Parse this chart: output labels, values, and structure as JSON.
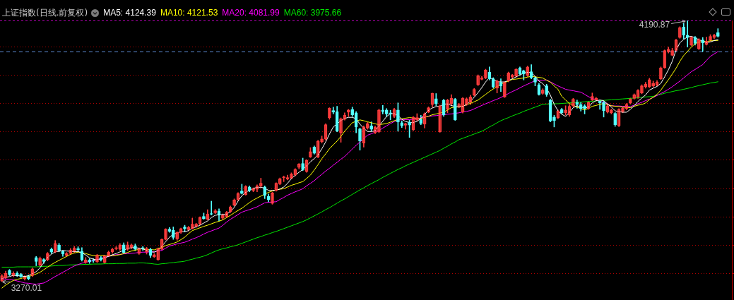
{
  "chart_data": {
    "type": "candlestick",
    "title": "上证指数(日线.前复权)",
    "categories": [
      null,
      null,
      null,
      null,
      null,
      null,
      null,
      null,
      null,
      null,
      null,
      null,
      null,
      null,
      null,
      null,
      null,
      null,
      null,
      null,
      null,
      null,
      null,
      null,
      null,
      null,
      null,
      null,
      null,
      null,
      null,
      null,
      null,
      null,
      null,
      null,
      null,
      null,
      null,
      null,
      null,
      null,
      null,
      null,
      null,
      null,
      null,
      null,
      null,
      null,
      null,
      null,
      null,
      null,
      null,
      null,
      null,
      null,
      null,
      null,
      null,
      null,
      null,
      null,
      null,
      null,
      null,
      null,
      null,
      null,
      null,
      null,
      null,
      null,
      null,
      null,
      null,
      null,
      null,
      null,
      null,
      null,
      null,
      null,
      null,
      null,
      null,
      null,
      null,
      null,
      null,
      null,
      null,
      null,
      null,
      null,
      null,
      null,
      null,
      null,
      null,
      null,
      null,
      null,
      null,
      null,
      null,
      null,
      null,
      null,
      null,
      null,
      null,
      null,
      null,
      null,
      null,
      null,
      null,
      null,
      null,
      null,
      null,
      null,
      null,
      null,
      null,
      null,
      null,
      null,
      null,
      null,
      null,
      null,
      null,
      null,
      null,
      null,
      null,
      null,
      null,
      null,
      null,
      null,
      null,
      null,
      null,
      null,
      null,
      null,
      null,
      null,
      null,
      null,
      null,
      null,
      null,
      null,
      null,
      null,
      null,
      null,
      null,
      null,
      null,
      null,
      null,
      null,
      null,
      null,
      null,
      null,
      null,
      null,
      null,
      null,
      null,
      null,
      null,
      null,
      null,
      null,
      null,
      null,
      null,
      null,
      null,
      null,
      null
    ],
    "ohlc": [
      [
        3272,
        3295,
        3270.01,
        3291
      ],
      [
        3283,
        3307,
        3280,
        3299
      ],
      [
        3309,
        3313,
        3291,
        3294
      ],
      [
        3292,
        3305,
        3287,
        3299
      ],
      [
        3299,
        3305,
        3288,
        3292
      ],
      [
        3296,
        3299,
        3284,
        3288
      ],
      [
        3280,
        3291,
        3275,
        3286
      ],
      [
        3288,
        3293,
        3276,
        3280
      ],
      [
        3291,
        3318,
        3288,
        3315
      ],
      [
        3355,
        3359,
        3326,
        3341
      ],
      [
        3328,
        3357,
        3324,
        3352
      ],
      [
        3348,
        3351,
        3334,
        3341
      ],
      [
        3347,
        3373,
        3343,
        3369
      ],
      [
        3385,
        3389,
        3369,
        3374
      ],
      [
        3374,
        3415,
        3372,
        3405
      ],
      [
        3399,
        3405,
        3375,
        3380
      ],
      [
        3376,
        3380,
        3359,
        3367
      ],
      [
        3362,
        3373,
        3359,
        3369
      ],
      [
        3369,
        3387,
        3366,
        3382
      ],
      [
        3377,
        3394,
        3373,
        3388
      ],
      [
        3386,
        3393,
        3375,
        3382
      ],
      [
        3377,
        3390,
        3342,
        3347
      ],
      [
        3338,
        3355,
        3334,
        3347
      ],
      [
        3347,
        3351,
        3334,
        3340
      ],
      [
        3345,
        3351,
        3338,
        3342
      ],
      [
        3340,
        3366,
        3337,
        3363
      ],
      [
        3355,
        3359,
        3342,
        3347
      ],
      [
        3338,
        3363,
        3334,
        3361
      ],
      [
        3361,
        3378,
        3359,
        3374
      ],
      [
        3375,
        3388,
        3370,
        3384
      ],
      [
        3386,
        3394,
        3382,
        3390
      ],
      [
        3384,
        3404,
        3380,
        3399
      ],
      [
        3400,
        3407,
        3369,
        3372
      ],
      [
        3384,
        3410,
        3380,
        3400
      ],
      [
        3391,
        3403,
        3386,
        3400
      ],
      [
        3397,
        3403,
        3379,
        3384
      ],
      [
        3369,
        3389,
        3366,
        3386
      ],
      [
        3390,
        3394,
        3380,
        3386
      ],
      [
        3374,
        3391,
        3367,
        3386
      ],
      [
        3384,
        3388,
        3355,
        3363
      ],
      [
        3357,
        3369,
        3355,
        3365
      ],
      [
        3348,
        3389,
        3345,
        3386
      ],
      [
        3384,
        3421,
        3381,
        3419
      ],
      [
        3419,
        3457,
        3417,
        3455
      ],
      [
        3455,
        3461,
        3444,
        3447
      ],
      [
        3451,
        3463,
        3419,
        3426
      ],
      [
        3421,
        3446,
        3416,
        3444
      ],
      [
        3444,
        3459,
        3440,
        3457
      ],
      [
        3463,
        3469,
        3446,
        3457
      ],
      [
        3453,
        3465,
        3449,
        3461
      ],
      [
        3457,
        3494,
        3455,
        3473
      ],
      [
        3465,
        3476,
        3462,
        3473
      ],
      [
        3473,
        3499,
        3470,
        3496
      ],
      [
        3500,
        3512,
        3490,
        3492
      ],
      [
        3490,
        3524,
        3488,
        3509
      ],
      [
        3510,
        3554,
        3505,
        3508
      ],
      [
        3513,
        3525,
        3510,
        3520
      ],
      [
        3519,
        3527,
        3484,
        3507
      ],
      [
        3494,
        3509,
        3490,
        3504
      ],
      [
        3499,
        3518,
        3496,
        3515
      ],
      [
        3517,
        3537,
        3514,
        3534
      ],
      [
        3540,
        3562,
        3537,
        3559
      ],
      [
        3559,
        3584,
        3556,
        3581
      ],
      [
        3590,
        3614,
        3579,
        3581
      ],
      [
        3577,
        3609,
        3575,
        3606
      ],
      [
        3604,
        3608,
        3587,
        3592
      ],
      [
        3592,
        3601,
        3587,
        3598
      ],
      [
        3596,
        3612,
        3587,
        3608
      ],
      [
        3608,
        3635,
        3604,
        3617
      ],
      [
        3604,
        3608,
        3563,
        3575
      ],
      [
        3571,
        3579,
        3550,
        3560
      ],
      [
        3546,
        3586,
        3543,
        3583
      ],
      [
        3592,
        3619,
        3589,
        3617
      ],
      [
        3615,
        3636,
        3612,
        3633
      ],
      [
        3637,
        3643,
        3623,
        3640
      ],
      [
        3632,
        3646,
        3629,
        3637
      ],
      [
        3635,
        3654,
        3632,
        3650
      ],
      [
        3646,
        3669,
        3643,
        3666
      ],
      [
        3673,
        3687,
        3668,
        3685
      ],
      [
        3687,
        3706,
        3662,
        3665
      ],
      [
        3658,
        3701,
        3656,
        3698
      ],
      [
        3710,
        3743,
        3708,
        3729
      ],
      [
        3745,
        3749,
        3720,
        3723
      ],
      [
        3710,
        3769,
        3707,
        3766
      ],
      [
        3764,
        3784,
        3759,
        3774
      ],
      [
        3773,
        3827,
        3770,
        3824
      ],
      [
        3848,
        3884,
        3843,
        3882
      ],
      [
        3874,
        3886,
        3862,
        3868
      ],
      [
        3870,
        3889,
        3799,
        3801
      ],
      [
        3795,
        3848,
        3762,
        3845
      ],
      [
        3843,
        3866,
        3840,
        3858
      ],
      [
        3868,
        3878,
        3853,
        3876
      ],
      [
        3878,
        3886,
        3853,
        3859
      ],
      [
        3866,
        3870,
        3795,
        3816
      ],
      [
        3809,
        3812,
        3734,
        3766
      ],
      [
        3759,
        3820,
        3745,
        3816
      ],
      [
        3812,
        3832,
        3808,
        3828
      ],
      [
        3820,
        3834,
        3801,
        3808
      ],
      [
        3795,
        3819,
        3792,
        3816
      ],
      [
        3799,
        3879,
        3796,
        3876
      ],
      [
        3876,
        3892,
        3862,
        3870
      ],
      [
        3876,
        3881,
        3853,
        3862
      ],
      [
        3866,
        3875,
        3841,
        3862
      ],
      [
        3853,
        3882,
        3849,
        3878
      ],
      [
        3876,
        3901,
        3801,
        3833
      ],
      [
        3831,
        3837,
        3814,
        3820
      ],
      [
        3822,
        3830,
        3808,
        3828
      ],
      [
        3833,
        3841,
        3779,
        3823
      ],
      [
        3806,
        3853,
        3803,
        3851
      ],
      [
        3841,
        3863,
        3837,
        3849
      ],
      [
        3843,
        3857,
        3824,
        3828
      ],
      [
        3826,
        3866,
        3812,
        3863
      ],
      [
        3868,
        3887,
        3866,
        3884
      ],
      [
        3895,
        3936,
        3886,
        3935
      ],
      [
        3916,
        3934,
        3891,
        3899
      ],
      [
        3799,
        3893,
        3797,
        3891
      ],
      [
        3911,
        3914,
        3853,
        3858
      ],
      [
        3878,
        3914,
        3866,
        3911
      ],
      [
        3899,
        3930,
        3891,
        3917
      ],
      [
        3914,
        3917,
        3839,
        3841
      ],
      [
        3888,
        3899,
        3884,
        3896
      ],
      [
        3868,
        3920,
        3865,
        3917
      ],
      [
        3895,
        3919,
        3892,
        3916
      ],
      [
        3903,
        3928,
        3895,
        3922
      ],
      [
        3928,
        3952,
        3925,
        3949
      ],
      [
        3965,
        4000,
        3962,
        3997
      ],
      [
        3984,
        3995,
        3982,
        3990
      ],
      [
        3989,
        4020,
        3986,
        4017
      ],
      [
        4009,
        4028,
        3982,
        3986
      ],
      [
        3986,
        3990,
        3953,
        3957
      ],
      [
        3953,
        3982,
        3936,
        3978
      ],
      [
        3974,
        3986,
        3941,
        3961
      ],
      [
        3922,
        3976,
        3920,
        3974
      ],
      [
        3978,
        4010,
        3975,
        4007
      ],
      [
        3992,
        4002,
        3988,
        3999
      ],
      [
        3995,
        4022,
        3992,
        4020
      ],
      [
        4025,
        4028,
        3999,
        4003
      ],
      [
        4014,
        4017,
        3982,
        4003
      ],
      [
        3997,
        4031,
        3994,
        4028
      ],
      [
        4011,
        4036,
        3986,
        3990
      ],
      [
        3989,
        3992,
        3961,
        3974
      ],
      [
        3965,
        3970,
        3928,
        3931
      ],
      [
        3934,
        3951,
        3931,
        3946
      ],
      [
        3961,
        3967,
        3924,
        3931
      ],
      [
        3911,
        3914,
        3834,
        3837
      ],
      [
        3851,
        3857,
        3816,
        3839
      ],
      [
        3848,
        3876,
        3845,
        3873
      ],
      [
        3878,
        3882,
        3862,
        3866
      ],
      [
        3866,
        3891,
        3858,
        3876
      ],
      [
        3859,
        3895,
        3853,
        3889
      ],
      [
        3891,
        3917,
        3886,
        3914
      ],
      [
        3903,
        3911,
        3882,
        3895
      ],
      [
        3895,
        3903,
        3872,
        3881
      ],
      [
        3891,
        3895,
        3862,
        3881
      ],
      [
        3881,
        3906,
        3878,
        3903
      ],
      [
        3911,
        3936,
        3907,
        3924
      ],
      [
        3911,
        3921,
        3908,
        3917
      ],
      [
        3907,
        3911,
        3878,
        3901
      ],
      [
        3903,
        3907,
        3851,
        3873
      ],
      [
        3868,
        3894,
        3865,
        3891
      ],
      [
        3866,
        3879,
        3862,
        3876
      ],
      [
        3864,
        3867,
        3818,
        3824
      ],
      [
        3820,
        3881,
        3817,
        3878
      ],
      [
        3870,
        3886,
        3866,
        3882
      ],
      [
        3881,
        3899,
        3877,
        3896
      ],
      [
        3900,
        3918,
        3897,
        3916
      ],
      [
        3917,
        3933,
        3914,
        3930
      ],
      [
        3920,
        3948,
        3917,
        3945
      ],
      [
        3936,
        3965,
        3933,
        3961
      ],
      [
        3957,
        3974,
        3953,
        3967
      ],
      [
        3957,
        3988,
        3955,
        3983
      ],
      [
        3961,
        3978,
        3957,
        3970
      ],
      [
        3964,
        3980,
        3961,
        3975
      ],
      [
        3986,
        4028,
        3983,
        4025
      ],
      [
        4025,
        4088,
        4023,
        4086
      ],
      [
        4082,
        4098,
        4077,
        4090
      ],
      [
        4069,
        4094,
        4067,
        4086
      ],
      [
        4086,
        4126,
        4083,
        4123
      ],
      [
        4132,
        4170,
        4129,
        4167
      ],
      [
        4169,
        4182,
        4127,
        4140
      ],
      [
        4140,
        4190.87,
        4098,
        4132
      ],
      [
        4105,
        4136,
        4102,
        4132
      ],
      [
        4132,
        4136,
        4105,
        4111
      ],
      [
        4092,
        4128,
        4089,
        4125
      ],
      [
        4123,
        4132,
        4083,
        4113
      ],
      [
        4107,
        4133,
        4105,
        4119
      ],
      [
        4123,
        4142,
        4119,
        4136
      ],
      [
        4132,
        4144,
        4127,
        4140
      ],
      [
        4149,
        4163,
        4133,
        4136
      ]
    ],
    "colors": [
      "#ff3c3c",
      "#ff3c3c",
      "#54ffff",
      "#ff3c3c",
      "#54ffff",
      "#54ffff",
      "#ff3c3c",
      "#54ffff",
      "#ff3c3c",
      "#54ffff",
      "#ff3c3c",
      "#54ffff",
      "#ff3c3c",
      "#54ffff",
      "#ff3c3c",
      "#54ffff",
      "#54ffff",
      "#ff3c3c",
      "#ff3c3c",
      "#ff3c3c",
      "#54ffff",
      "#54ffff",
      "#ff3c3c",
      "#54ffff",
      "#54ffff",
      "#ff3c3c",
      "#54ffff",
      "#ff3c3c",
      "#ff3c3c",
      "#ff3c3c",
      "#ff3c3c",
      "#ff3c3c",
      "#54ffff",
      "#ff3c3c",
      "#ff3c3c",
      "#54ffff",
      "#ff3c3c",
      "#54ffff",
      "#ff3c3c",
      "#54ffff",
      "#ff3c3c",
      "#ff3c3c",
      "#ff3c3c",
      "#ff3c3c",
      "#54ffff",
      "#54ffff",
      "#ff3c3c",
      "#ff3c3c",
      "#54ffff",
      "#ff3c3c",
      "#ff3c3c",
      "#ff3c3c",
      "#ff3c3c",
      "#54ffff",
      "#ff3c3c",
      "#54ffff",
      "#ff3c3c",
      "#54ffff",
      "#ff3c3c",
      "#ff3c3c",
      "#ff3c3c",
      "#ff3c3c",
      "#ff3c3c",
      "#54ffff",
      "#ff3c3c",
      "#54ffff",
      "#ff3c3c",
      "#ff3c3c",
      "#ff3c3c",
      "#54ffff",
      "#54ffff",
      "#ff3c3c",
      "#ff3c3c",
      "#ff3c3c",
      "#ff3c3c",
      "#ff3c3c",
      "#ff3c3c",
      "#ff3c3c",
      "#ff3c3c",
      "#54ffff",
      "#ff3c3c",
      "#ff3c3c",
      "#54ffff",
      "#ff3c3c",
      "#ff3c3c",
      "#ff3c3c",
      "#ff3c3c",
      "#54ffff",
      "#54ffff",
      "#ff3c3c",
      "#ff3c3c",
      "#ff3c3c",
      "#54ffff",
      "#54ffff",
      "#54ffff",
      "#ff3c3c",
      "#ff3c3c",
      "#54ffff",
      "#ff3c3c",
      "#ff3c3c",
      "#54ffff",
      "#54ffff",
      "#54ffff",
      "#ff3c3c",
      "#54ffff",
      "#54ffff",
      "#ff3c3c",
      "#54ffff",
      "#ff3c3c",
      "#ff3c3c",
      "#54ffff",
      "#ff3c3c",
      "#ff3c3c",
      "#ff3c3c",
      "#54ffff",
      "#ff3c3c",
      "#54ffff",
      "#ff3c3c",
      "#ff3c3c",
      "#54ffff",
      "#ff3c3c",
      "#ff3c3c",
      "#ff3c3c",
      "#ff3c3c",
      "#ff3c3c",
      "#ff3c3c",
      "#ff3c3c",
      "#ff3c3c",
      "#54ffff",
      "#54ffff",
      "#ff3c3c",
      "#54ffff",
      "#ff3c3c",
      "#ff3c3c",
      "#ff3c3c",
      "#ff3c3c",
      "#54ffff",
      "#54ffff",
      "#ff3c3c",
      "#54ffff",
      "#54ffff",
      "#54ffff",
      "#ff3c3c",
      "#54ffff",
      "#54ffff",
      "#54ffff",
      "#ff3c3c",
      "#54ffff",
      "#ff3c3c",
      "#ff3c3c",
      "#ff3c3c",
      "#54ffff",
      "#54ffff",
      "#54ffff",
      "#ff3c3c",
      "#ff3c3c",
      "#ff3c3c",
      "#54ffff",
      "#54ffff",
      "#ff3c3c",
      "#ff3c3c",
      "#54ffff",
      "#ff3c3c",
      "#ff3c3c",
      "#ff3c3c",
      "#ff3c3c",
      "#ff3c3c",
      "#ff3c3c",
      "#ff3c3c",
      "#ff3c3c",
      "#ff3c3c",
      "#ff3c3c",
      "#ff3c3c",
      "#ff3c3c",
      "#ff3c3c",
      "#ff3c3c",
      "#ff3c3c",
      "#ff3c3c",
      "#ff3c3c",
      "#54ffff",
      "#54ffff",
      "#ff3c3c",
      "#54ffff",
      "#ff3c3c",
      "#54ffff",
      "#ff3c3c",
      "#ff3c3c",
      "#ff3c3c",
      "#54ffff"
    ],
    "series": [
      {
        "type": "line",
        "name": "MA5: 4124.39",
        "color": "#ffffff",
        "values": [
          3280,
          3285,
          3288,
          3292,
          3291,
          3290,
          3288,
          3291,
          3298,
          3305,
          3319,
          3337,
          3355,
          3367,
          3375,
          3377,
          3380,
          3378,
          3377,
          3376,
          3376,
          3372,
          3364,
          3354,
          3349,
          3347,
          3350,
          3354,
          3359,
          3365,
          3369,
          3375,
          3381,
          3387,
          3390,
          3390,
          3388,
          3385,
          3381,
          3375,
          3374,
          3380,
          3395,
          3411,
          3427,
          3437,
          3442,
          3446,
          3446,
          3450,
          3459,
          3463,
          3469,
          3477,
          3484,
          3496,
          3504,
          3506,
          3507,
          3508,
          3517,
          3532,
          3554,
          3573,
          3585,
          3593,
          3599,
          3603,
          3603,
          3600,
          3592,
          3592,
          3593,
          3597,
          3604,
          3617,
          3634,
          3645,
          3656,
          3666,
          3679,
          3693,
          3704,
          3718,
          3739,
          3763,
          3791,
          3816,
          3827,
          3838,
          3846,
          3850,
          3850,
          3845,
          3826,
          3811,
          3800,
          3800,
          3802,
          3820,
          3836,
          3853,
          3863,
          3863,
          3856,
          3843,
          3835,
          3832,
          3831,
          3836,
          3846,
          3861,
          3875,
          3883,
          3888,
          3889,
          3897,
          3897,
          3892,
          3888,
          3887,
          3889,
          3895,
          3906,
          3921,
          3937,
          3955,
          3975,
          3990,
          3985,
          3976,
          3975,
          3975,
          3980,
          3986,
          3993,
          3999,
          4007,
          4009,
          4008,
          3995,
          3978,
          3969,
          3953,
          3928,
          3896,
          3873,
          3861,
          3853,
          3868,
          3884,
          3891,
          3887,
          3882,
          3886,
          3901,
          3909,
          3911,
          3909,
          3897,
          3886,
          3873,
          3870,
          3868,
          3868,
          3878,
          3891,
          3906,
          3918,
          3929,
          3946,
          3953,
          3959,
          3970,
          3993,
          4018,
          4048,
          4088,
          4113,
          4125,
          4134,
          4136,
          4131,
          4124,
          4118,
          4114,
          4116,
          4121,
          4124.39
        ]
      },
      {
        "type": "line",
        "name": "MA10: 4121.53",
        "color": "#ffff00",
        "values": [
          3247,
          3258,
          3266,
          3274,
          3278,
          3281,
          3285,
          3288,
          3292,
          3297,
          3303,
          3312,
          3321,
          3330,
          3338,
          3345,
          3352,
          3359,
          3366,
          3371,
          3374,
          3372,
          3369,
          3365,
          3362,
          3362,
          3363,
          3362,
          3360,
          3361,
          3363,
          3365,
          3369,
          3373,
          3378,
          3381,
          3384,
          3386,
          3384,
          3383,
          3382,
          3387,
          3391,
          3397,
          3401,
          3405,
          3410,
          3418,
          3427,
          3439,
          3450,
          3455,
          3460,
          3465,
          3469,
          3474,
          3479,
          3483,
          3488,
          3496,
          3504,
          3513,
          3521,
          3529,
          3539,
          3549,
          3558,
          3565,
          3572,
          3579,
          3585,
          3590,
          3593,
          3596,
          3598,
          3604,
          3610,
          3614,
          3619,
          3623,
          3634,
          3646,
          3664,
          3683,
          3704,
          3721,
          3739,
          3753,
          3766,
          3783,
          3801,
          3816,
          3831,
          3836,
          3841,
          3838,
          3834,
          3831,
          3827,
          3824,
          3826,
          3828,
          3833,
          3838,
          3843,
          3845,
          3847,
          3849,
          3848,
          3846,
          3845,
          3850,
          3854,
          3859,
          3862,
          3865,
          3868,
          3876,
          3884,
          3886,
          3887,
          3889,
          3895,
          3899,
          3905,
          3911,
          3921,
          3931,
          3941,
          3950,
          3959,
          3967,
          3973,
          3978,
          3984,
          3985,
          3987,
          3989,
          3992,
          3995,
          3993,
          3991,
          3989,
          3981,
          3974,
          3961,
          3949,
          3924,
          3911,
          3899,
          3893,
          3886,
          3881,
          3876,
          3882,
          3889,
          3892,
          3896,
          3899,
          3895,
          3891,
          3889,
          3888,
          3886,
          3885,
          3884,
          3889,
          3893,
          3895,
          3901,
          3913,
          3921,
          3931,
          3946,
          3965,
          3983,
          4003,
          4023,
          4048,
          4068,
          4083,
          4098,
          4110,
          4116,
          4118,
          4118,
          4120,
          4121,
          4121.53
        ]
      },
      {
        "type": "line",
        "name": "MA20: 4081.99",
        "color": "#ff00ff",
        "values": [
          3280,
          3279,
          3277,
          3276,
          3272,
          3269,
          3265,
          3264,
          3262,
          3261,
          3263,
          3265,
          3272,
          3280,
          3288,
          3295,
          3303,
          3310,
          3318,
          3325,
          3330,
          3335,
          3338,
          3341,
          3344,
          3348,
          3352,
          3356,
          3359,
          3362,
          3365,
          3366,
          3368,
          3369,
          3370,
          3371,
          3373,
          3374,
          3374,
          3375,
          3375,
          3378,
          3380,
          3388,
          3396,
          3399,
          3403,
          3406,
          3409,
          3414,
          3420,
          3425,
          3431,
          3438,
          3444,
          3449,
          3454,
          3459,
          3469,
          3480,
          3490,
          3498,
          3507,
          3515,
          3520,
          3524,
          3529,
          3534,
          3541,
          3548,
          3550,
          3551,
          3552,
          3560,
          3567,
          3575,
          3581,
          3587,
          3592,
          3598,
          3608,
          3617,
          3626,
          3638,
          3649,
          3660,
          3670,
          3681,
          3691,
          3702,
          3712,
          3725,
          3738,
          3751,
          3763,
          3775,
          3787,
          3792,
          3798,
          3803,
          3812,
          3820,
          3828,
          3835,
          3841,
          3841,
          3842,
          3842,
          3843,
          3845,
          3848,
          3851,
          3853,
          3855,
          3856,
          3858,
          3859,
          3861,
          3862,
          3864,
          3866,
          3869,
          3871,
          3874,
          3880,
          3886,
          3892,
          3898,
          3903,
          3909,
          3914,
          3920,
          3927,
          3934,
          3941,
          3947,
          3954,
          3961,
          3967,
          3973,
          3980,
          3981,
          3981,
          3982,
          3975,
          3968,
          3961,
          3955,
          3949,
          3946,
          3944,
          3941,
          3939,
          3931,
          3923,
          3916,
          3912,
          3907,
          3903,
          3897,
          3891,
          3890,
          3890,
          3889,
          3889,
          3888,
          3893,
          3898,
          3903,
          3909,
          3914,
          3920,
          3927,
          3934,
          3941,
          3949,
          3958,
          3968,
          3978,
          3989,
          4000,
          4011,
          4019,
          4028,
          4036,
          4051,
          4065,
          4074,
          4081.99
        ]
      },
      {
        "type": "line",
        "name": "MA60: 3975.66",
        "color": "#00e600",
        "values": [
          3321,
          3321,
          3321,
          3321,
          3322,
          3322,
          3322,
          3322,
          3322,
          3322,
          3323,
          3324,
          3324,
          3325,
          3326,
          3327,
          3327,
          3328,
          3329,
          3329,
          3330,
          3330,
          3331,
          3331,
          3332,
          3332,
          3332,
          3333,
          3333,
          3333,
          3334,
          3334,
          3334,
          3335,
          3335,
          3335,
          3336,
          3336,
          3335,
          3334,
          3332,
          3331,
          3333,
          3334,
          3336,
          3337,
          3339,
          3340,
          3342,
          3346,
          3349,
          3353,
          3356,
          3360,
          3365,
          3371,
          3377,
          3382,
          3386,
          3389,
          3393,
          3396,
          3400,
          3405,
          3410,
          3415,
          3420,
          3425,
          3429,
          3434,
          3438,
          3443,
          3447,
          3452,
          3457,
          3462,
          3467,
          3472,
          3477,
          3482,
          3488,
          3495,
          3502,
          3509,
          3516,
          3524,
          3531,
          3539,
          3547,
          3555,
          3562,
          3570,
          3578,
          3586,
          3594,
          3601,
          3609,
          3616,
          3623,
          3630,
          3638,
          3645,
          3652,
          3659,
          3666,
          3672,
          3679,
          3685,
          3691,
          3697,
          3703,
          3709,
          3715,
          3721,
          3727,
          3733,
          3741,
          3748,
          3756,
          3763,
          3771,
          3776,
          3781,
          3786,
          3791,
          3796,
          3801,
          3808,
          3816,
          3823,
          3831,
          3838,
          3844,
          3849,
          3855,
          3860,
          3865,
          3871,
          3876,
          3881,
          3886,
          3891,
          3896,
          3897,
          3897,
          3898,
          3898,
          3899,
          3900,
          3901,
          3902,
          3903,
          3904,
          3905,
          3906,
          3907,
          3908,
          3909,
          3910,
          3911,
          3912,
          3913,
          3914,
          3915,
          3916,
          3917,
          3918,
          3919,
          3921,
          3922,
          3923,
          3924,
          3928,
          3931,
          3935,
          3938,
          3941,
          3944,
          3946,
          3949,
          3952,
          3955,
          3959,
          3962,
          3965,
          3968,
          3971,
          3973,
          3975.66
        ]
      }
    ],
    "ylim": [
      3205,
      4192
    ],
    "yticks": [
      {
        "value": 3300,
        "label": null
      },
      {
        "value": 3400,
        "label": null
      },
      {
        "value": 3500,
        "label": null
      },
      {
        "value": 3600,
        "label": null
      },
      {
        "value": 3700,
        "label": null
      },
      {
        "value": 3800,
        "label": null
      },
      {
        "value": 3900,
        "label": null
      },
      {
        "value": 4000,
        "label": null
      },
      {
        "value": 4100,
        "label": null
      }
    ],
    "grid": "y",
    "tick_labels": false,
    "legend": "top left",
    "ref_lines": [
      {
        "axis": "y",
        "value": 4082,
        "color": "#5f8fd8",
        "line_style": "dashed"
      }
    ],
    "annotations": [
      "4190.87",
      "3270.01"
    ]
  }
}
